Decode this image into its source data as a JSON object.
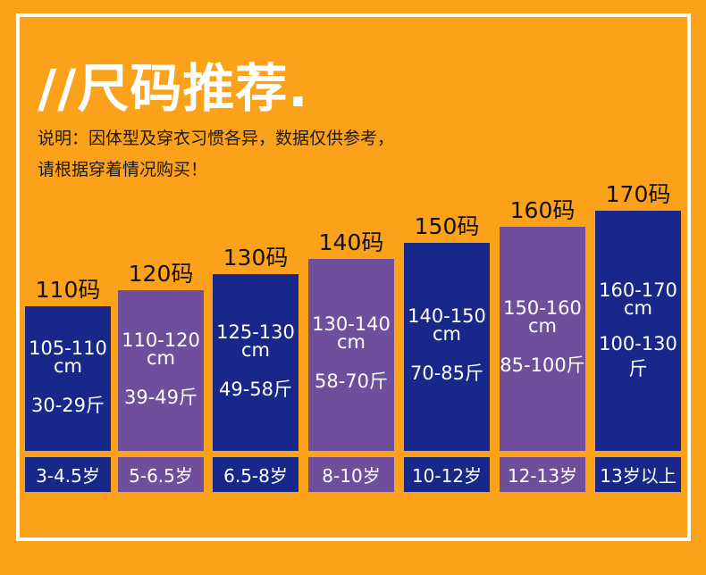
{
  "title": "//尺码推荐.",
  "note_line1": "说明：因体型及穿衣习惯各异，数据仅供参考，",
  "note_line2": "请根据穿着情况购买！",
  "colors": {
    "background": "#FBA21A",
    "navy": "#17288A",
    "purple": "#6F4F9C",
    "frame": "#FFFFFF"
  },
  "chart_data": {
    "type": "bar",
    "title": "尺码推荐",
    "categories": [
      "110码",
      "120码",
      "130码",
      "140码",
      "150码",
      "160码",
      "170码"
    ],
    "values": [
      110,
      120,
      130,
      140,
      150,
      160,
      170
    ],
    "columns": [
      {
        "size": "110码",
        "height": "105-110",
        "unit": "cm",
        "weight": "30-29斤",
        "age": "3-4.5岁",
        "color": "navy"
      },
      {
        "size": "120码",
        "height": "110-120",
        "unit": "cm",
        "weight": "39-49斤",
        "age": "5-6.5岁",
        "color": "purple"
      },
      {
        "size": "130码",
        "height": "125-130",
        "unit": "cm",
        "weight": "49-58斤",
        "age": "6.5-8岁",
        "color": "navy"
      },
      {
        "size": "140码",
        "height": "130-140",
        "unit": "cm",
        "weight": "58-70斤",
        "age": "8-10岁",
        "color": "purple"
      },
      {
        "size": "150码",
        "height": "140-150",
        "unit": "cm",
        "weight": "70-85斤",
        "age": "10-12岁",
        "color": "navy"
      },
      {
        "size": "160码",
        "height": "150-160",
        "unit": "cm",
        "weight": "85-100斤",
        "age": "12-13岁",
        "color": "purple"
      },
      {
        "size": "170码",
        "height": "160-170",
        "unit": "cm",
        "weight": "100-130斤",
        "age": "13岁以上",
        "color": "navy"
      }
    ]
  }
}
